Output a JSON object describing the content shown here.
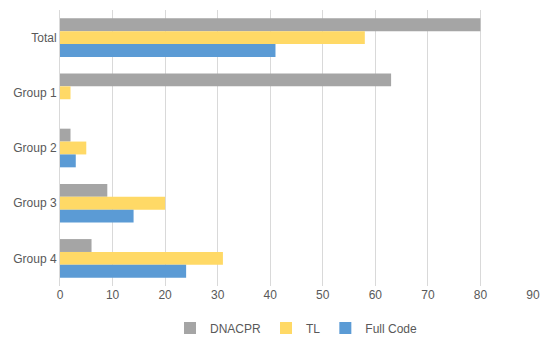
{
  "chart_data": {
    "type": "bar",
    "orientation": "horizontal",
    "categories": [
      "Total",
      "Group 1",
      "Group 2",
      "Group 3",
      "Group 4"
    ],
    "series": [
      {
        "name": "DNACPR",
        "color": "#a5a5a5",
        "values": [
          80,
          63,
          2,
          9,
          6
        ]
      },
      {
        "name": "TL",
        "color": "#ffd966",
        "values": [
          58,
          2,
          5,
          20,
          31
        ]
      },
      {
        "name": "Full Code",
        "color": "#5b9bd5",
        "values": [
          41,
          0,
          3,
          14,
          24
        ]
      }
    ],
    "xlim": [
      0,
      90
    ],
    "xticks": [
      0,
      10,
      20,
      30,
      40,
      50,
      60,
      70,
      80,
      90
    ],
    "grid": true,
    "legend": "bottom"
  }
}
